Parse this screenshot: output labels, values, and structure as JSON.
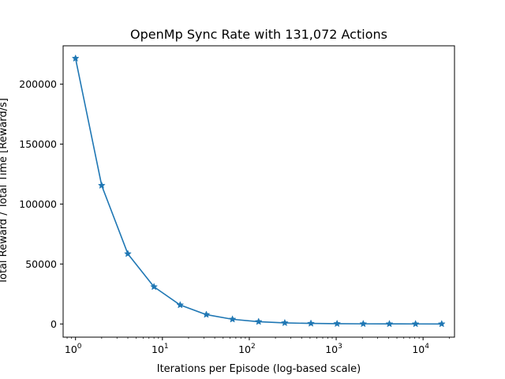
{
  "chart_data": {
    "type": "line",
    "title": "OpenMp Sync Rate with 131,072 Actions",
    "xlabel": "Iterations per Episode (log-based scale)",
    "ylabel": "Total Reward / Total Time [Reward/s]",
    "xscale": "log",
    "xlim": [
      0.72,
      23000
    ],
    "ylim": [
      -11000,
      232000
    ],
    "grid": false,
    "xticks": [
      {
        "base": "10",
        "exp": "0",
        "value": 1
      },
      {
        "base": "10",
        "exp": "1",
        "value": 10
      },
      {
        "base": "10",
        "exp": "2",
        "value": 100
      },
      {
        "base": "10",
        "exp": "3",
        "value": 1000
      },
      {
        "base": "10",
        "exp": "4",
        "value": 10000
      }
    ],
    "yticks": [
      {
        "label": "0",
        "value": 0
      },
      {
        "label": "50000",
        "value": 50000
      },
      {
        "label": "100000",
        "value": 100000
      },
      {
        "label": "150000",
        "value": 150000
      },
      {
        "label": "200000",
        "value": 200000
      }
    ],
    "series": [
      {
        "color": "#1f77b4",
        "marker": "star",
        "x": [
          1,
          2,
          4,
          8,
          16,
          32,
          64,
          128,
          256,
          512,
          1024,
          2048,
          4096,
          8192,
          16384
        ],
        "y": [
          221500,
          115500,
          58500,
          31000,
          15800,
          7800,
          3900,
          1900,
          900,
          450,
          230,
          110,
          60,
          30,
          15
        ]
      }
    ]
  }
}
